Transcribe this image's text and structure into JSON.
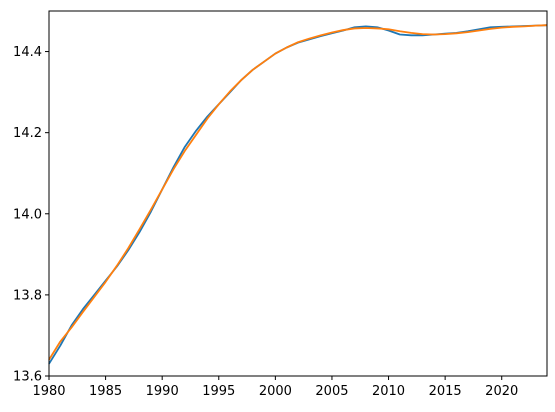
{
  "chart_data": {
    "type": "line",
    "title": "",
    "xlabel": "",
    "ylabel": "",
    "xlim": [
      1980,
      2024
    ],
    "ylim": [
      13.6,
      14.5
    ],
    "grid": false,
    "x_ticks": [
      1980,
      1985,
      1990,
      1995,
      2000,
      2005,
      2010,
      2015,
      2020
    ],
    "x_tick_labels": [
      "1980",
      "1985",
      "1990",
      "1995",
      "2000",
      "2005",
      "2010",
      "2015",
      "2020"
    ],
    "y_ticks": [
      13.6,
      13.8,
      14.0,
      14.2,
      14.4
    ],
    "y_tick_labels": [
      "13.6",
      "13.8",
      "14.0",
      "14.2",
      "14.4"
    ],
    "series": [
      {
        "color": "#1f77b4",
        "x": [
          1980,
          1981,
          1982,
          1983,
          1984,
          1985,
          1986,
          1987,
          1988,
          1989,
          1990,
          1991,
          1992,
          1993,
          1994,
          1995,
          1996,
          1997,
          1998,
          1999,
          2000,
          2001,
          2002,
          2003,
          2004,
          2005,
          2006,
          2007,
          2008,
          2009,
          2010,
          2011,
          2012,
          2013,
          2014,
          2015,
          2016,
          2017,
          2018,
          2019,
          2020,
          2021,
          2022,
          2023,
          2024
        ],
        "y": [
          13.63,
          13.675,
          13.725,
          13.765,
          13.8,
          13.835,
          13.87,
          13.91,
          13.955,
          14.005,
          14.06,
          14.115,
          14.165,
          14.205,
          14.24,
          14.27,
          14.3,
          14.33,
          14.355,
          14.375,
          14.395,
          14.41,
          14.422,
          14.43,
          14.438,
          14.445,
          14.452,
          14.46,
          14.462,
          14.46,
          14.452,
          14.442,
          14.44,
          14.44,
          14.442,
          14.444,
          14.446,
          14.45,
          14.455,
          14.46,
          14.461,
          14.462,
          14.463,
          14.464,
          14.465
        ]
      },
      {
        "color": "#ff7f0e",
        "x": [
          1980,
          1981,
          1982,
          1983,
          1984,
          1985,
          1986,
          1987,
          1988,
          1989,
          1990,
          1991,
          1992,
          1993,
          1994,
          1995,
          1996,
          1997,
          1998,
          1999,
          2000,
          2001,
          2002,
          2003,
          2004,
          2005,
          2006,
          2007,
          2008,
          2009,
          2010,
          2011,
          2012,
          2013,
          2014,
          2015,
          2016,
          2017,
          2018,
          2019,
          2020,
          2021,
          2022,
          2023,
          2024
        ],
        "y": [
          13.64,
          13.685,
          13.72,
          13.758,
          13.795,
          13.832,
          13.872,
          13.915,
          13.962,
          14.01,
          14.06,
          14.11,
          14.155,
          14.195,
          14.235,
          14.27,
          14.302,
          14.33,
          14.355,
          14.375,
          14.395,
          14.41,
          14.423,
          14.432,
          14.44,
          14.447,
          14.453,
          14.457,
          14.458,
          14.457,
          14.455,
          14.45,
          14.446,
          14.443,
          14.442,
          14.443,
          14.445,
          14.448,
          14.452,
          14.456,
          14.459,
          14.461,
          14.462,
          14.464,
          14.465
        ]
      }
    ]
  }
}
